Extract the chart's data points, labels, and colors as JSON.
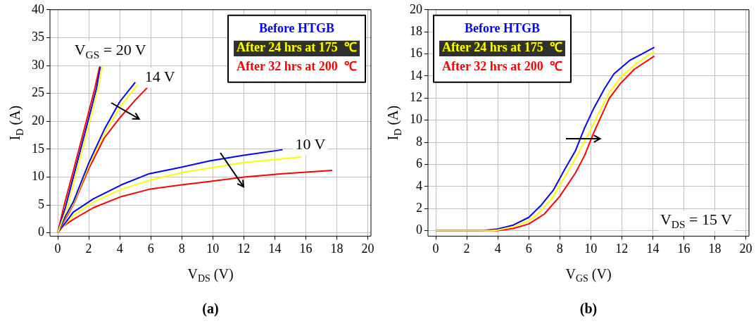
{
  "chart_data": [
    {
      "type": "line",
      "xlabel": "V$_{DS}$ (V)",
      "ylabel": "I$_{D}$ (A)",
      "xlim": [
        -0.5,
        20.2
      ],
      "ylim": [
        -0.6,
        40
      ],
      "xticks": [
        0,
        2,
        4,
        6,
        8,
        10,
        12,
        14,
        16,
        18,
        20
      ],
      "yticks": [
        0,
        5,
        10,
        15,
        20,
        25,
        30,
        35,
        40
      ],
      "grid": true,
      "legend": "top right",
      "series": [
        {
          "name": "Before HTGB",
          "color": "#0000ff",
          "x": [
            0,
            0.5,
            1,
            1.5,
            2,
            2.5,
            2.75
          ],
          "values": [
            0,
            4.6,
            9.9,
            15.2,
            20.5,
            25.9,
            29.8
          ]
        },
        {
          "name": "After 24 hrs at 175  ℃",
          "color": "#ffff00",
          "x": [
            0,
            0.6,
            1.1,
            1.6,
            2.1,
            2.6,
            2.85
          ],
          "values": [
            0,
            4.5,
            9.8,
            15.1,
            20.4,
            25.8,
            29.8
          ]
        },
        {
          "name": "After 32 hrs at 200  ℃",
          "color": "#ff0000",
          "x": [
            0,
            0.4,
            0.9,
            1.4,
            1.9,
            2.4,
            2.7
          ],
          "values": [
            0,
            4.8,
            10,
            15.3,
            20.6,
            26,
            29.8
          ]
        },
        {
          "color": "#0000ff",
          "x": [
            0,
            0.5,
            1,
            2,
            3,
            4,
            5
          ],
          "values": [
            0,
            3,
            5.5,
            12.5,
            18.5,
            23.5,
            27
          ]
        },
        {
          "color": "#ffff00",
          "x": [
            0,
            0.5,
            1,
            2,
            3,
            4,
            5.15
          ],
          "values": [
            0,
            2.8,
            5.2,
            12,
            17.8,
            22.5,
            26.5
          ]
        },
        {
          "color": "#ff0000",
          "x": [
            0,
            0.5,
            1,
            2,
            3,
            4,
            5,
            5.8
          ],
          "values": [
            0,
            2.5,
            5,
            11.5,
            17,
            20.6,
            23.8,
            26.1
          ]
        },
        {
          "color": "#0000ff",
          "x": [
            0,
            0.2,
            0.5,
            1,
            2.3,
            4.1,
            5.9,
            7.7,
            9.8,
            12,
            14.5
          ],
          "values": [
            0,
            0.8,
            1.8,
            3.7,
            6.1,
            8.6,
            10.6,
            11.6,
            12.9,
            13.9,
            14.9
          ]
        },
        {
          "color": "#ffff00",
          "x": [
            0,
            0.2,
            0.5,
            1,
            2.3,
            4.1,
            5.9,
            8,
            9.8,
            12,
            15.7
          ],
          "values": [
            0,
            0.7,
            1.6,
            3.1,
            5.5,
            7.8,
            9.4,
            10.8,
            11.6,
            12.6,
            13.6
          ]
        },
        {
          "color": "#ff0000",
          "x": [
            0,
            0.37,
            1,
            2.3,
            4.1,
            5.9,
            8,
            9.8,
            12,
            14.5,
            17.7
          ],
          "values": [
            0,
            1.2,
            2.4,
            4.5,
            6.5,
            7.8,
            8.6,
            9.2,
            10,
            10.6,
            11.2
          ]
        }
      ],
      "annotations": [
        "V$_{GS}$ = 20 V",
        "14 V",
        "10 V",
        "(a)"
      ]
    },
    {
      "type": "line",
      "xlabel": "V$_{GS}$ (V)",
      "ylabel": "I$_{D}$ (A)",
      "xlim": [
        -0.5,
        20.2
      ],
      "ylim": [
        -0.5,
        20
      ],
      "xticks": [
        0,
        2,
        4,
        6,
        8,
        10,
        12,
        14,
        16,
        18,
        20
      ],
      "yticks": [
        0,
        2,
        4,
        6,
        8,
        10,
        12,
        14,
        16,
        18,
        20
      ],
      "grid": true,
      "legend": "top left",
      "series": [
        {
          "name": "Before HTGB",
          "color": "#0000ff",
          "x": [
            0,
            3,
            4,
            5,
            6,
            6.8,
            7.6,
            8.3,
            9,
            9.6,
            10.2,
            10.9,
            11.5,
            12.5,
            13.3,
            14.1
          ],
          "values": [
            0,
            0,
            0.15,
            0.5,
            1.2,
            2.3,
            3.7,
            5.5,
            7.2,
            9.3,
            11.1,
            12.9,
            14.2,
            15.4,
            16,
            16.6
          ]
        },
        {
          "name": "After 24 hrs at 175  ℃",
          "color": "#ffff00",
          "x": [
            0,
            3.5,
            4,
            5,
            6,
            6.5,
            7.5,
            8.5,
            9.2,
            10,
            10.5,
            11.2,
            12,
            13,
            14.1
          ],
          "values": [
            0,
            0,
            0.05,
            0.35,
            0.9,
            1.4,
            2.9,
            5.3,
            7,
            9.2,
            10.6,
            12.5,
            14,
            15.2,
            16.2
          ]
        },
        {
          "name": "After 32 hrs at 200  ℃",
          "color": "#ff0000",
          "x": [
            0,
            4,
            5,
            6,
            7,
            8,
            9,
            9.6,
            10.2,
            11.2,
            11.9,
            12.8,
            14.1
          ],
          "values": [
            0,
            0,
            0.2,
            0.6,
            1.5,
            3.1,
            5.2,
            6.8,
            8.9,
            12,
            13.3,
            14.6,
            15.8
          ]
        }
      ],
      "annotations": [
        "V$_{DS}$ = 15 V",
        "(b)"
      ]
    }
  ]
}
